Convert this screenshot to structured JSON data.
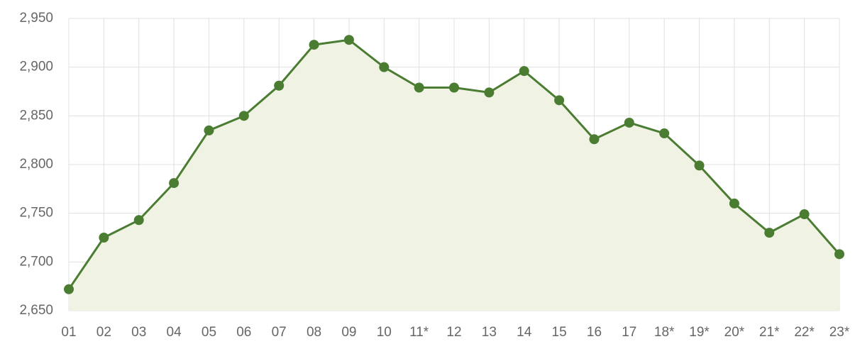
{
  "chart_data": {
    "type": "line",
    "categories": [
      "01",
      "02",
      "03",
      "04",
      "05",
      "06",
      "07",
      "08",
      "09",
      "10",
      "11*",
      "12",
      "13",
      "14",
      "15",
      "16",
      "17",
      "18*",
      "19*",
      "20*",
      "21*",
      "22*",
      "23*"
    ],
    "values": [
      2672,
      2725,
      2743,
      2781,
      2835,
      2850,
      2881,
      2923,
      2928,
      2900,
      2879,
      2879,
      2874,
      2896,
      2866,
      2826,
      2843,
      2832,
      2799,
      2760,
      2730,
      2749,
      2708
    ],
    "color": "#4a7d32",
    "fill": "#f0f2e4",
    "ylim": [
      2650,
      2950
    ],
    "yticks": [
      {
        "value": 2650,
        "label": "2,650"
      },
      {
        "value": 2700,
        "label": "2,700"
      },
      {
        "value": 2750,
        "label": "2,750"
      },
      {
        "value": 2800,
        "label": "2,800"
      },
      {
        "value": 2850,
        "label": "2,850"
      },
      {
        "value": 2900,
        "label": "2,900"
      },
      {
        "value": 2950,
        "label": "2,950"
      }
    ],
    "grid": true
  }
}
